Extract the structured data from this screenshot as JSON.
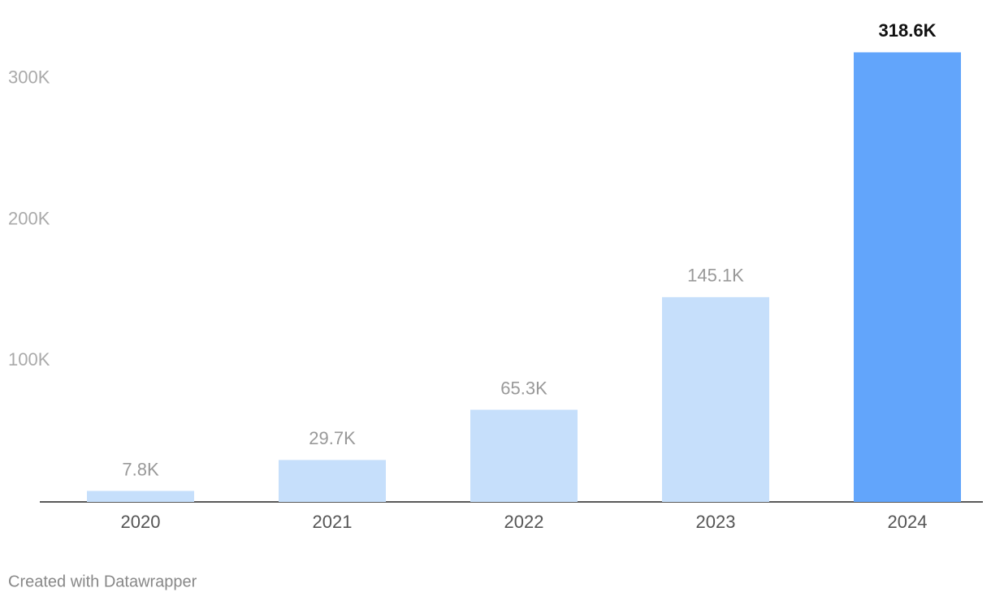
{
  "chart_data": {
    "type": "bar",
    "categories": [
      "2020",
      "2021",
      "2022",
      "2023",
      "2024"
    ],
    "values": [
      7800,
      29700,
      65300,
      145100,
      318600
    ],
    "value_labels": [
      "7.8K",
      "29.7K",
      "65.3K",
      "145.1K",
      "318.6K"
    ],
    "colors": [
      "#c6dffb",
      "#c6dffb",
      "#c6dffb",
      "#c6dffb",
      "#62a5fb"
    ],
    "label_colors": [
      "#999999",
      "#999999",
      "#999999",
      "#999999",
      "#111111"
    ],
    "ylim": [
      0,
      320000
    ],
    "yticks": [
      {
        "value": 100000,
        "label": "100K"
      },
      {
        "value": 200000,
        "label": "200K"
      },
      {
        "value": 300000,
        "label": "300K"
      }
    ],
    "grid": false,
    "footer": "Created with Datawrapper"
  }
}
